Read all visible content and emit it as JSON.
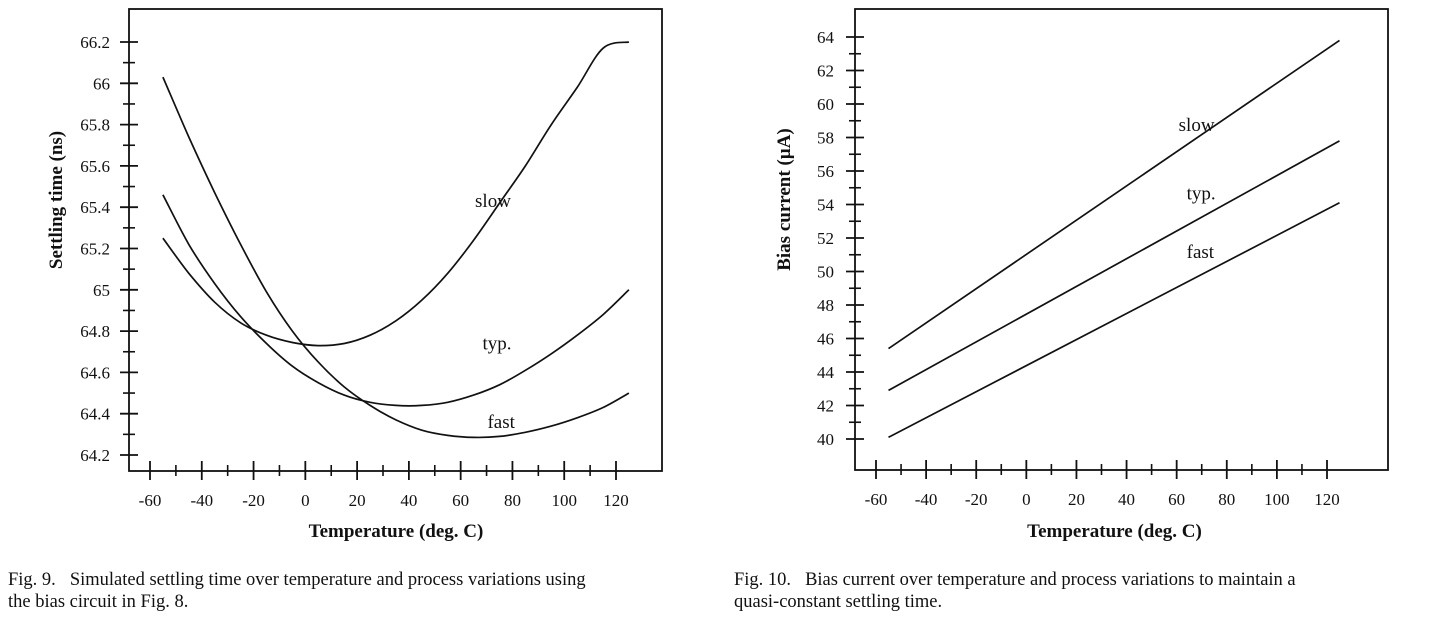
{
  "chart_data": [
    {
      "type": "line",
      "id": "fig9",
      "title": "",
      "xlabel": "Temperature (deg. C)",
      "ylabel": "Settling time (ns)",
      "xlim": [
        -68,
        137
      ],
      "ylim": [
        64.12,
        66.37
      ],
      "xticks": [
        -60,
        -40,
        -20,
        0,
        20,
        40,
        60,
        80,
        100,
        120
      ],
      "xtick_labels": [
        "-60",
        "-40",
        "-20",
        "0",
        "20",
        "40",
        "60",
        "80",
        "100",
        "120"
      ],
      "xminor": [
        -50,
        -30,
        -10,
        10,
        30,
        50,
        70,
        90,
        110
      ],
      "yticks": [
        64.2,
        64.4,
        64.6,
        64.8,
        65,
        65.2,
        65.4,
        65.6,
        65.8,
        66,
        66.2
      ],
      "ytick_labels": [
        "64.2",
        "64.4",
        "64.6",
        "64.8",
        "65",
        "65.2",
        "65.4",
        "65.6",
        "65.8",
        "66",
        "66.2"
      ],
      "yminor": [
        64.3,
        64.5,
        64.7,
        64.9,
        65.1,
        65.3,
        65.5,
        65.7,
        65.9,
        66.1
      ],
      "grid": false,
      "series": [
        {
          "name": "slow",
          "label_at": [
            -13,
            65.42
          ],
          "x": [
            -55,
            -45,
            -35,
            -25,
            -15,
            -5,
            5,
            15,
            25,
            35,
            45,
            55,
            65,
            75,
            85,
            95,
            105,
            115,
            125
          ],
          "values": [
            65.25,
            65.08,
            64.94,
            64.84,
            64.78,
            64.745,
            64.73,
            64.74,
            64.78,
            64.85,
            64.95,
            65.08,
            65.24,
            65.42,
            65.6,
            65.8,
            65.98,
            66.17,
            66.2
          ]
        },
        {
          "name": "typ.",
          "label_at": [
            -13,
            64.72
          ],
          "x": [
            -55,
            -45,
            -35,
            -25,
            -15,
            -5,
            5,
            15,
            25,
            35,
            45,
            55,
            65,
            75,
            85,
            95,
            105,
            115,
            125
          ],
          "values": [
            65.46,
            65.22,
            65.03,
            64.87,
            64.74,
            64.63,
            64.55,
            64.49,
            64.455,
            64.44,
            64.44,
            64.455,
            64.49,
            64.54,
            64.61,
            64.69,
            64.78,
            64.88,
            65.0
          ]
        },
        {
          "name": "fast",
          "label_at": [
            -13,
            64.34
          ],
          "x": [
            -55,
            -45,
            -35,
            -25,
            -15,
            -5,
            5,
            15,
            25,
            35,
            45,
            55,
            65,
            75,
            85,
            95,
            105,
            115,
            125
          ],
          "values": [
            66.03,
            65.74,
            65.47,
            65.22,
            64.99,
            64.8,
            64.65,
            64.53,
            64.44,
            64.37,
            64.32,
            64.295,
            64.285,
            64.29,
            64.31,
            64.34,
            64.38,
            64.43,
            64.5
          ]
        }
      ]
    },
    {
      "type": "line",
      "id": "fig10",
      "title": "",
      "xlabel": "Temperature (deg. C)",
      "ylabel": "Bias current (µA)",
      "xlim": [
        -68,
        137
      ],
      "ylim": [
        38.1,
        65.6
      ],
      "xticks": [
        -60,
        -40,
        -20,
        0,
        20,
        40,
        60,
        80,
        100,
        120
      ],
      "xtick_labels": [
        "-60",
        "-40",
        "-20",
        "0",
        "20",
        "40",
        "60",
        "80",
        "100",
        "120"
      ],
      "xminor": [
        -50,
        -30,
        -10,
        10,
        30,
        50,
        70,
        90,
        110
      ],
      "yticks": [
        40,
        42,
        44,
        46,
        48,
        50,
        52,
        54,
        56,
        58,
        60,
        62,
        64
      ],
      "ytick_labels": [
        "40",
        "42",
        "44",
        "46",
        "48",
        "50",
        "52",
        "54",
        "56",
        "58",
        "60",
        "62",
        "64"
      ],
      "yminor": [
        41,
        43,
        45,
        47,
        49,
        51,
        53,
        55,
        57,
        59,
        61,
        63
      ],
      "grid": false,
      "series": [
        {
          "name": "slow",
          "label_at": [
            50,
            58.7
          ],
          "x": [
            -55,
            125
          ],
          "values": [
            45.4,
            63.8
          ]
        },
        {
          "name": "typ.",
          "label_at": [
            50,
            54.5
          ],
          "x": [
            -55,
            125
          ],
          "values": [
            42.9,
            57.8
          ]
        },
        {
          "name": "fast",
          "label_at": [
            50,
            51.1
          ],
          "x": [
            -55,
            125
          ],
          "values": [
            40.1,
            54.1
          ]
        }
      ]
    }
  ],
  "captions": [
    {
      "number": "Fig. 9.",
      "line1": "Simulated settling time over temperature and process variations using",
      "line2": "the bias circuit in Fig. 8."
    },
    {
      "number": "Fig. 10.",
      "line1": "Bias current over temperature and process variations to maintain a",
      "line2": "quasi-constant settling time."
    }
  ]
}
